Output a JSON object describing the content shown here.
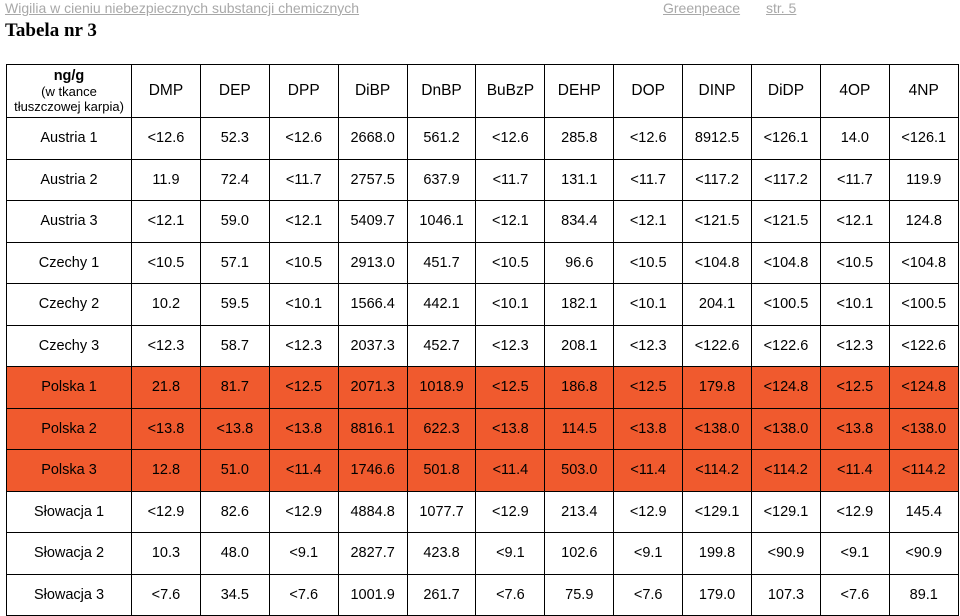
{
  "header": {
    "doc_title": "Wigilia w cieniu niebezpiecznych substancji chemicznych",
    "org": "Greenpeace",
    "page": "str. 5"
  },
  "table_caption": "Tabela nr 3",
  "colors": {
    "highlight": "#f05a2e",
    "header_text": "#a8a8a8"
  },
  "table": {
    "corner": {
      "unit": "ng/g",
      "line1": "(w tkance",
      "line2": "tłuszczowej karpia)"
    },
    "columns": [
      "DMP",
      "DEP",
      "DPP",
      "DiBP",
      "DnBP",
      "BuBzP",
      "DEHP",
      "DOP",
      "DINP",
      "DiDP",
      "4OP",
      "4NP"
    ],
    "rows": [
      {
        "country": "Austria 1",
        "highlight": false,
        "values": [
          "<12.6",
          "52.3",
          "<12.6",
          "2668.0",
          "561.2",
          "<12.6",
          "285.8",
          "<12.6",
          "8912.5",
          "<126.1",
          "14.0",
          "<126.1"
        ]
      },
      {
        "country": "Austria 2",
        "highlight": false,
        "values": [
          "11.9",
          "72.4",
          "<11.7",
          "2757.5",
          "637.9",
          "<11.7",
          "131.1",
          "<11.7",
          "<117.2",
          "<117.2",
          "<11.7",
          "119.9"
        ]
      },
      {
        "country": "Austria 3",
        "highlight": false,
        "values": [
          "<12.1",
          "59.0",
          "<12.1",
          "5409.7",
          "1046.1",
          "<12.1",
          "834.4",
          "<12.1",
          "<121.5",
          "<121.5",
          "<12.1",
          "124.8"
        ]
      },
      {
        "country": "Czechy 1",
        "highlight": false,
        "values": [
          "<10.5",
          "57.1",
          "<10.5",
          "2913.0",
          "451.7",
          "<10.5",
          "96.6",
          "<10.5",
          "<104.8",
          "<104.8",
          "<10.5",
          "<104.8"
        ]
      },
      {
        "country": "Czechy 2",
        "highlight": false,
        "values": [
          "10.2",
          "59.5",
          "<10.1",
          "1566.4",
          "442.1",
          "<10.1",
          "182.1",
          "<10.1",
          "204.1",
          "<100.5",
          "<10.1",
          "<100.5"
        ]
      },
      {
        "country": "Czechy 3",
        "highlight": false,
        "values": [
          "<12.3",
          "58.7",
          "<12.3",
          "2037.3",
          "452.7",
          "<12.3",
          "208.1",
          "<12.3",
          "<122.6",
          "<122.6",
          "<12.3",
          "<122.6"
        ]
      },
      {
        "country": "Polska 1",
        "highlight": true,
        "values": [
          "21.8",
          "81.7",
          "<12.5",
          "2071.3",
          "1018.9",
          "<12.5",
          "186.8",
          "<12.5",
          "179.8",
          "<124.8",
          "<12.5",
          "<124.8"
        ]
      },
      {
        "country": "Polska 2",
        "highlight": true,
        "values": [
          "<13.8",
          "<13.8",
          "<13.8",
          "8816.1",
          "622.3",
          "<13.8",
          "114.5",
          "<13.8",
          "<138.0",
          "<138.0",
          "<13.8",
          "<138.0"
        ]
      },
      {
        "country": "Polska 3",
        "highlight": true,
        "values": [
          "12.8",
          "51.0",
          "<11.4",
          "1746.6",
          "501.8",
          "<11.4",
          "503.0",
          "<11.4",
          "<114.2",
          "<114.2",
          "<11.4",
          "<114.2"
        ]
      },
      {
        "country": "Słowacja 1",
        "highlight": false,
        "values": [
          "<12.9",
          "82.6",
          "<12.9",
          "4884.8",
          "1077.7",
          "<12.9",
          "213.4",
          "<12.9",
          "<129.1",
          "<129.1",
          "<12.9",
          "145.4"
        ]
      },
      {
        "country": "Słowacja 2",
        "highlight": false,
        "values": [
          "10.3",
          "48.0",
          "<9.1",
          "2827.7",
          "423.8",
          "<9.1",
          "102.6",
          "<9.1",
          "199.8",
          "<90.9",
          "<9.1",
          "<90.9"
        ]
      },
      {
        "country": "Słowacja 3",
        "highlight": false,
        "values": [
          "<7.6",
          "34.5",
          "<7.6",
          "1001.9",
          "261.7",
          "<7.6",
          "75.9",
          "<7.6",
          "179.0",
          "107.3",
          "<7.6",
          "89.1"
        ]
      }
    ]
  }
}
